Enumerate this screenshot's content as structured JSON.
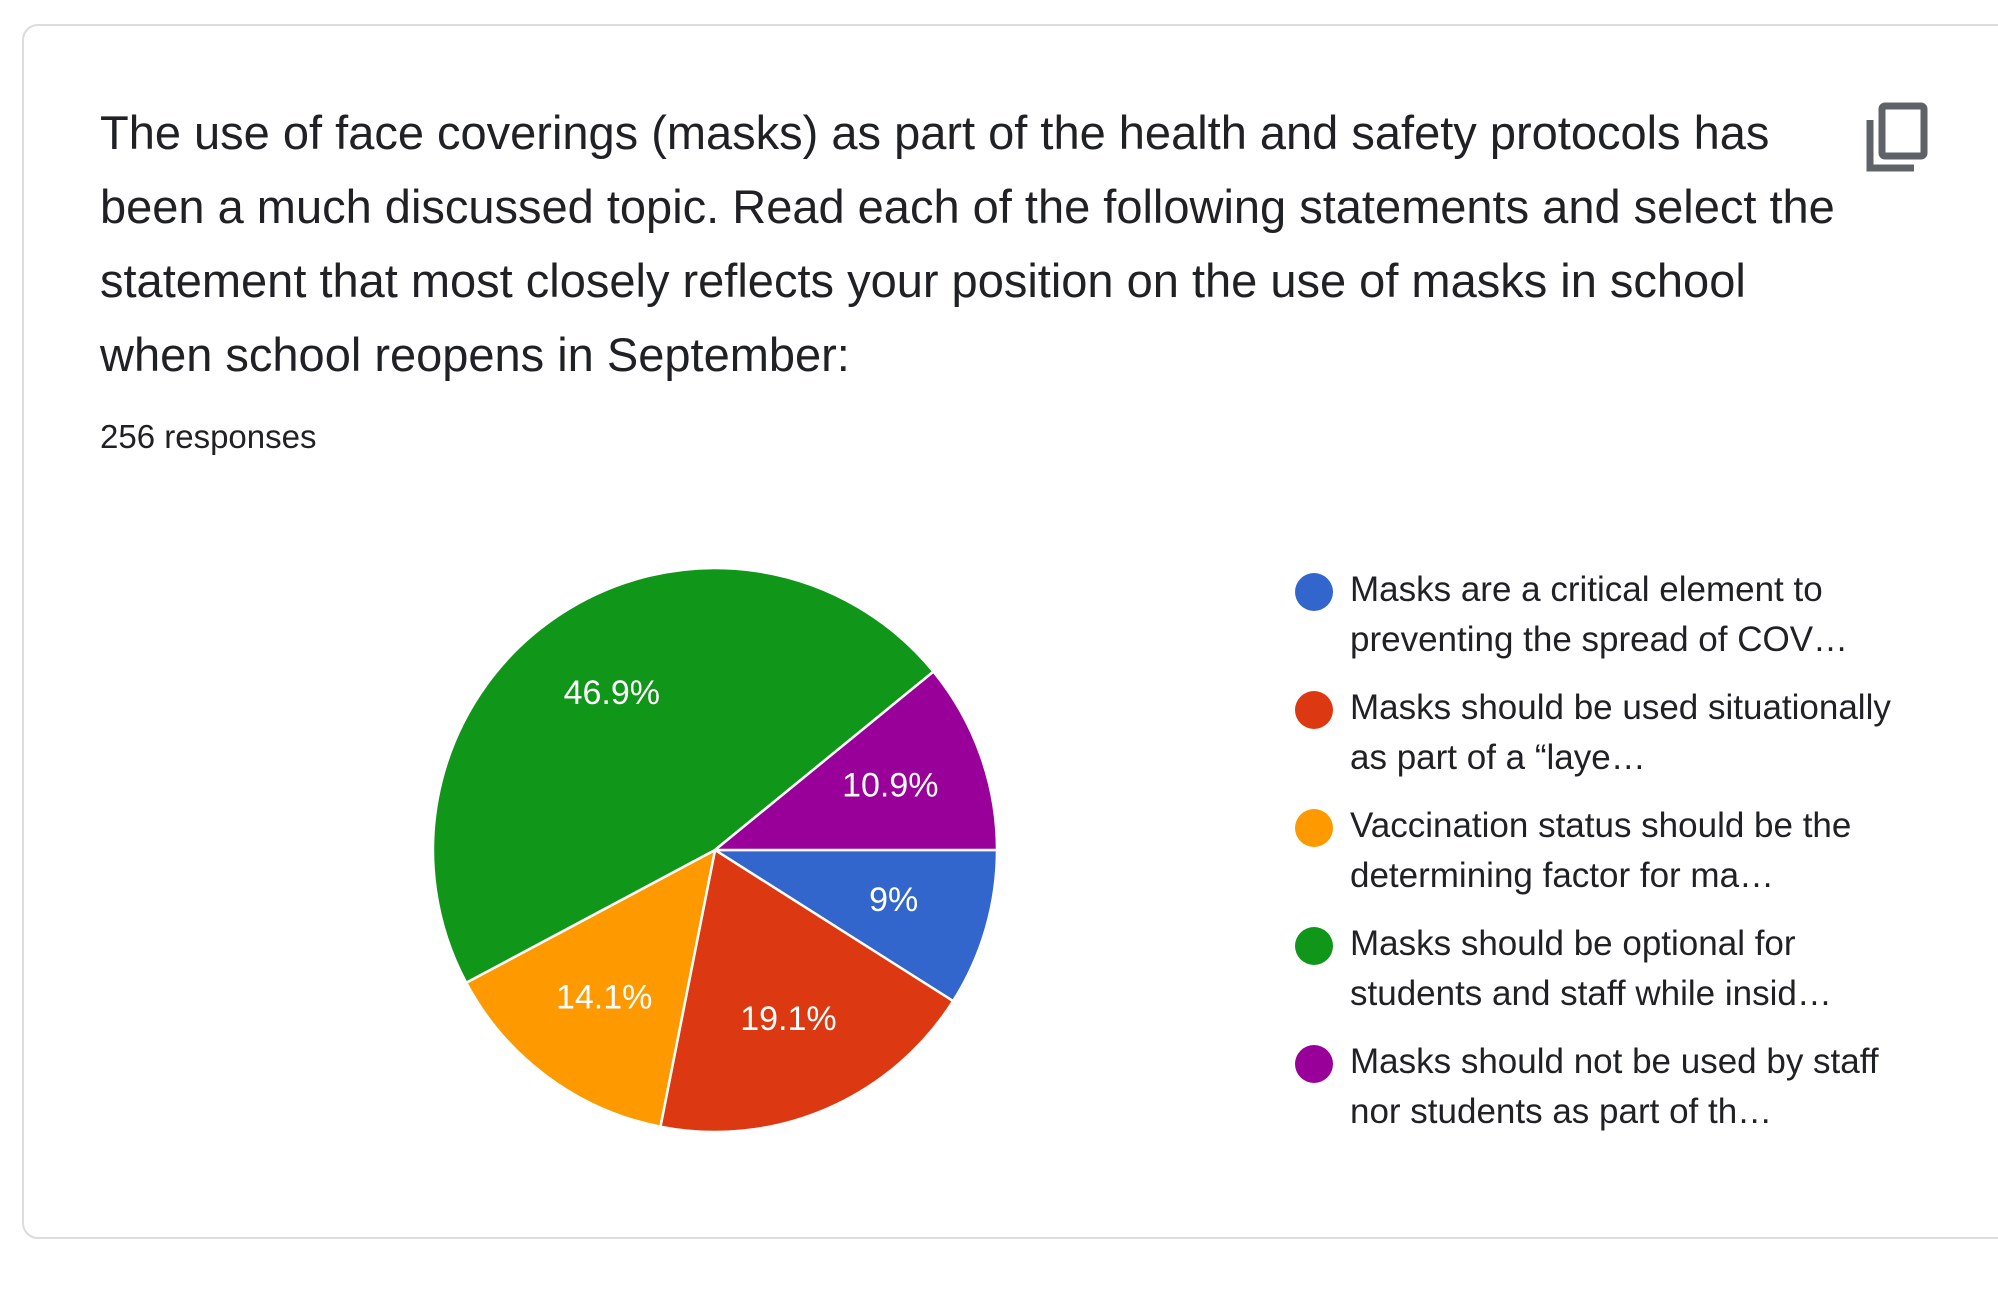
{
  "question_text": "The use of face coverings (masks) as part of the health and safety protocols has been a much discussed topic. Read each of the following statements and select the statement that most closely reflects your position on the use of masks in school when school reopens in September:",
  "response_count": "256 responses",
  "copy_icon": "copy-icon",
  "chart_data": {
    "type": "pie",
    "categories": [
      "Masks are a critical element to preventing the spread of COV…",
      "Masks should be used situationally as part of a “laye…",
      "Vaccination status should be the determining factor for ma…",
      "Masks should be optional for students and staff while insid…",
      "Masks should not be used by staff nor students as part of th…"
    ],
    "values": [
      9,
      19.1,
      14.1,
      46.9,
      10.9
    ],
    "labels": [
      "9%",
      "19.1%",
      "14.1%",
      "46.9%",
      "10.9%"
    ],
    "colors": [
      "#3366cc",
      "#dc3912",
      "#ff9900",
      "#109618",
      "#990099"
    ],
    "legend_position": "right"
  }
}
